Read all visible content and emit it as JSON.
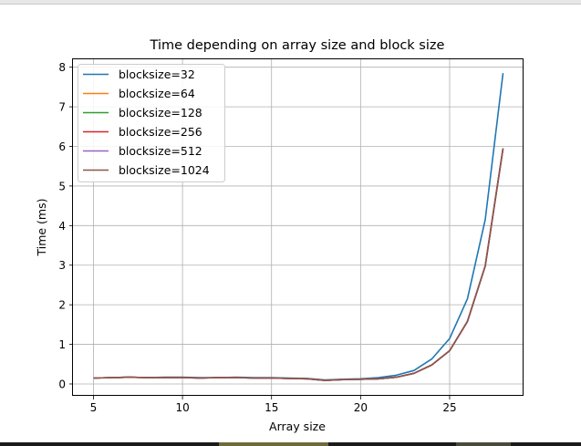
{
  "chart_data": {
    "type": "line",
    "title": "Time depending on array size and block size",
    "xlabel": "Array size",
    "ylabel": "Time (ms)",
    "xlim": [
      3.85,
      29.15
    ],
    "ylim": [
      -0.3,
      8.2
    ],
    "xticks": [
      5,
      10,
      15,
      20,
      25
    ],
    "yticks": [
      0,
      1,
      2,
      3,
      4,
      5,
      6,
      7,
      8
    ],
    "grid": true,
    "legend_position": "top-left",
    "x": [
      5,
      6,
      7,
      8,
      9,
      10,
      11,
      12,
      13,
      14,
      15,
      16,
      17,
      18,
      19,
      20,
      21,
      22,
      23,
      24,
      25,
      26,
      27,
      28
    ],
    "series": [
      {
        "name": "blocksize=32",
        "color": "#1f77b4",
        "values": [
          0.15,
          0.16,
          0.17,
          0.16,
          0.17,
          0.17,
          0.16,
          0.16,
          0.17,
          0.16,
          0.16,
          0.15,
          0.14,
          0.1,
          0.12,
          0.13,
          0.16,
          0.22,
          0.34,
          0.63,
          1.15,
          2.15,
          4.15,
          7.85
        ]
      },
      {
        "name": "blocksize=64",
        "color": "#ff7f0e",
        "values": [
          0.15,
          0.16,
          0.17,
          0.16,
          0.16,
          0.16,
          0.15,
          0.16,
          0.16,
          0.15,
          0.15,
          0.14,
          0.13,
          0.09,
          0.11,
          0.12,
          0.13,
          0.17,
          0.27,
          0.48,
          0.84,
          1.58,
          2.98,
          5.95
        ]
      },
      {
        "name": "blocksize=128",
        "color": "#2ca02c",
        "values": [
          0.15,
          0.16,
          0.17,
          0.16,
          0.16,
          0.16,
          0.15,
          0.16,
          0.16,
          0.15,
          0.15,
          0.14,
          0.13,
          0.09,
          0.11,
          0.12,
          0.13,
          0.17,
          0.27,
          0.48,
          0.84,
          1.58,
          2.98,
          5.95
        ]
      },
      {
        "name": "blocksize=256",
        "color": "#d62728",
        "values": [
          0.15,
          0.16,
          0.17,
          0.16,
          0.16,
          0.16,
          0.15,
          0.16,
          0.16,
          0.15,
          0.15,
          0.14,
          0.13,
          0.09,
          0.11,
          0.12,
          0.13,
          0.17,
          0.27,
          0.48,
          0.84,
          1.58,
          2.98,
          5.95
        ]
      },
      {
        "name": "blocksize=512",
        "color": "#9467bd",
        "values": [
          0.15,
          0.16,
          0.17,
          0.16,
          0.16,
          0.16,
          0.15,
          0.16,
          0.16,
          0.15,
          0.15,
          0.14,
          0.13,
          0.09,
          0.11,
          0.12,
          0.13,
          0.17,
          0.27,
          0.48,
          0.84,
          1.58,
          2.98,
          5.95
        ]
      },
      {
        "name": "blocksize=1024",
        "color": "#8c564b",
        "values": [
          0.15,
          0.16,
          0.17,
          0.16,
          0.16,
          0.16,
          0.15,
          0.16,
          0.16,
          0.15,
          0.15,
          0.14,
          0.13,
          0.09,
          0.11,
          0.12,
          0.13,
          0.17,
          0.27,
          0.48,
          0.84,
          1.58,
          2.98,
          5.95
        ]
      }
    ]
  }
}
